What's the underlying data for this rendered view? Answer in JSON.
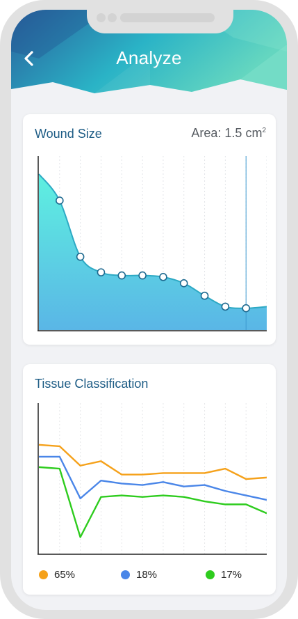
{
  "header": {
    "title": "Analyze",
    "back_icon": "chevron-left-icon",
    "gradient_colors": [
      "#2a5f9c",
      "#2ab3c6",
      "#64d6c0"
    ]
  },
  "wound_size": {
    "title": "Wound Size",
    "area_label": "Area: 1.5 cm",
    "area_unit_sup": "2",
    "fill_color": "#5ce6e0",
    "line_color": "#2da9c4",
    "marker_index": 10
  },
  "tissue_classification": {
    "title": "Tissue Classification",
    "legend": [
      {
        "label": "65%",
        "color": "#f5a11a"
      },
      {
        "label": "18%",
        "color": "#4a86e8"
      },
      {
        "label": "17%",
        "color": "#2ecc1e"
      }
    ]
  },
  "chart_data": [
    {
      "type": "area",
      "title": "Wound Size",
      "x": [
        0,
        1,
        2,
        3,
        4,
        5,
        6,
        7,
        8,
        9,
        10,
        11
      ],
      "values": [
        100,
        83,
        47,
        37,
        35,
        35,
        34,
        30,
        22,
        15,
        14,
        15
      ],
      "marker_points": [
        1,
        2,
        3,
        4,
        5,
        6,
        7,
        8,
        9,
        10
      ],
      "ylim": [
        0,
        100
      ],
      "grid": "vertical"
    },
    {
      "type": "line",
      "title": "Tissue Classification",
      "x": [
        0,
        1,
        2,
        3,
        4,
        5,
        6,
        7,
        8,
        9,
        10,
        11
      ],
      "series": [
        {
          "color": "#f5a11a",
          "values": [
            73,
            72,
            59,
            62,
            53,
            53,
            54,
            54,
            54,
            57,
            50,
            51
          ]
        },
        {
          "color": "#4a86e8",
          "values": [
            65,
            65,
            37,
            49,
            47,
            46,
            48,
            45,
            46,
            42,
            39,
            36
          ]
        },
        {
          "color": "#2ecc1e",
          "values": [
            58,
            57,
            11,
            38,
            39,
            38,
            39,
            38,
            35,
            33,
            33,
            27
          ]
        }
      ],
      "ylim": [
        0,
        100
      ],
      "grid": "vertical"
    }
  ]
}
